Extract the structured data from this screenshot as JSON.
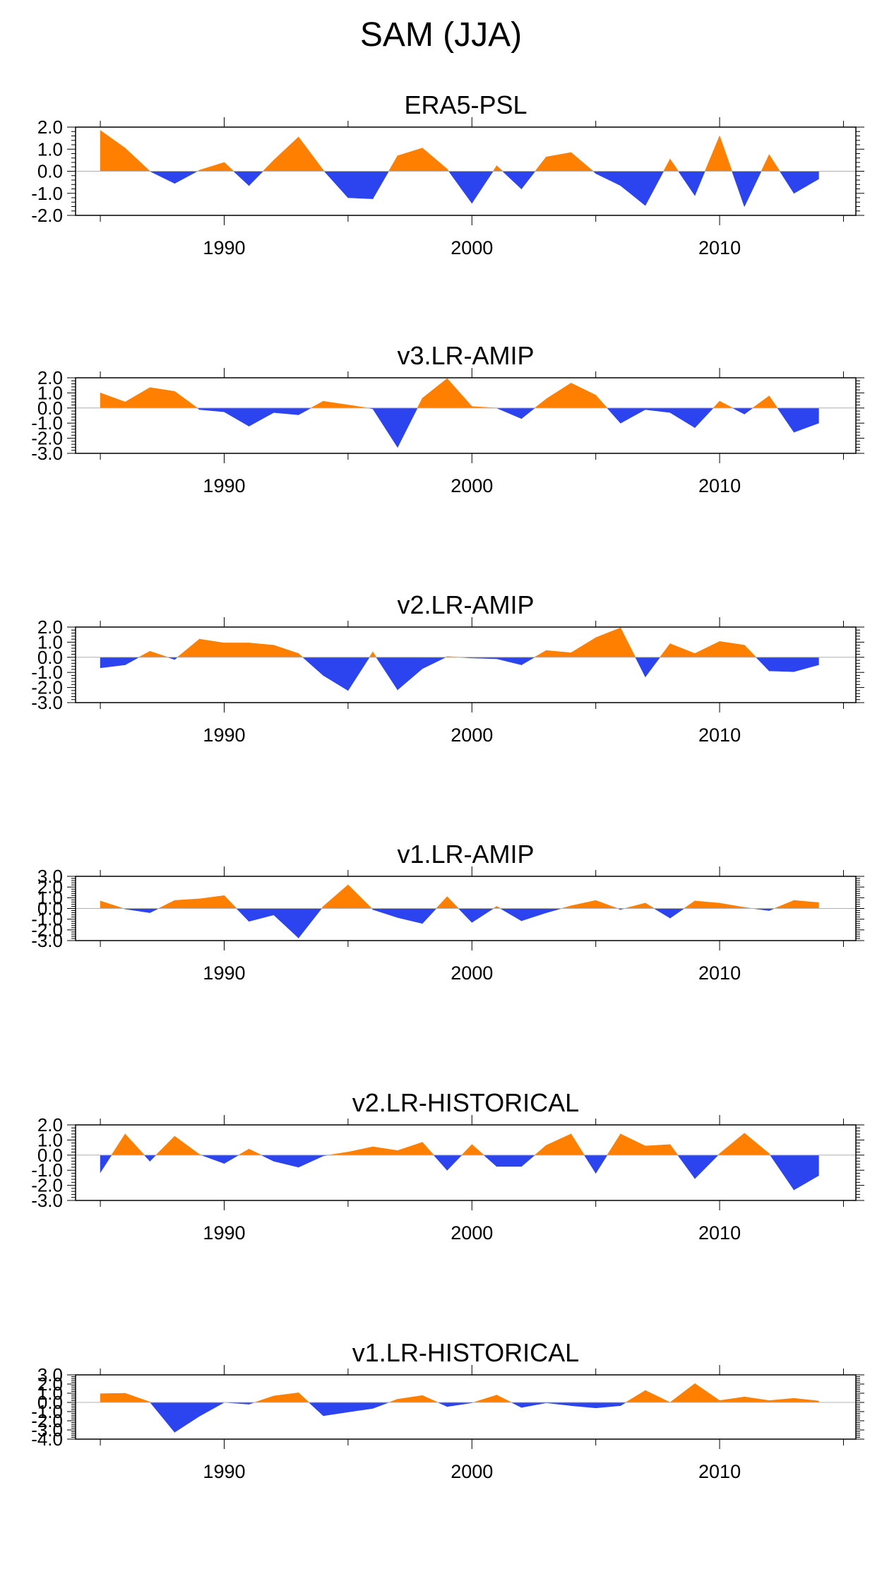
{
  "figure_title": "SAM (JJA)",
  "colors": {
    "positive": "#ff8000",
    "negative": "#2c44f0",
    "axis": "#000000",
    "zero_line": "#b0b0b0"
  },
  "chart_data": [
    {
      "type": "area",
      "title": "ERA5-PSL",
      "x": [
        1985,
        1986,
        1987,
        1988,
        1989,
        1990,
        1991,
        1992,
        1993,
        1994,
        1995,
        1996,
        1997,
        1998,
        1999,
        2000,
        2001,
        2002,
        2003,
        2004,
        2005,
        2006,
        2007,
        2008,
        2009,
        2010,
        2011,
        2012,
        2013,
        2014
      ],
      "values": [
        1.85,
        1.05,
        0.0,
        -0.55,
        0.05,
        0.4,
        -0.65,
        0.5,
        1.55,
        0.05,
        -1.2,
        -1.25,
        0.7,
        1.05,
        0.1,
        -1.45,
        0.25,
        -0.8,
        0.65,
        0.85,
        -0.1,
        -0.65,
        -1.55,
        0.55,
        -1.1,
        1.6,
        -1.6,
        0.75,
        -1.0,
        -0.35
      ],
      "ylim": [
        -2.0,
        2.0
      ],
      "yticks": [
        "2.0",
        "1.0",
        "0.0",
        "-1.0",
        "-2.0"
      ],
      "ytick_values": [
        2,
        1,
        0,
        -1,
        -2
      ],
      "xlim": [
        1984.0,
        2015.5
      ],
      "xticks": [
        "1990",
        "2000",
        "2010"
      ],
      "xtick_values": [
        1990,
        2000,
        2010
      ]
    },
    {
      "type": "area",
      "title": "v3.LR-AMIP",
      "x": [
        1985,
        1986,
        1987,
        1988,
        1989,
        1990,
        1991,
        1992,
        1993,
        1994,
        1995,
        1996,
        1997,
        1998,
        1999,
        2000,
        2001,
        2002,
        2003,
        2004,
        2005,
        2006,
        2007,
        2008,
        2009,
        2010,
        2011,
        2012,
        2013,
        2014
      ],
      "values": [
        1.0,
        0.4,
        1.35,
        1.1,
        -0.1,
        -0.25,
        -1.2,
        -0.3,
        -0.45,
        0.45,
        0.2,
        -0.05,
        -2.6,
        0.65,
        1.95,
        0.1,
        0.0,
        -0.7,
        0.6,
        1.65,
        0.85,
        -1.0,
        -0.1,
        -0.3,
        -1.3,
        0.45,
        -0.4,
        0.8,
        -1.6,
        -1.0
      ],
      "ylim": [
        -3.0,
        2.0
      ],
      "yticks": [
        "2.0",
        "1.0",
        "0.0",
        "-1.0",
        "-2.0",
        "-3.0"
      ],
      "ytick_values": [
        2,
        1,
        0,
        -1,
        -2,
        -3
      ],
      "xlim": [
        1984.0,
        2015.5
      ],
      "xticks": [
        "1990",
        "2000",
        "2010"
      ],
      "xtick_values": [
        1990,
        2000,
        2010
      ]
    },
    {
      "type": "area",
      "title": "v2.LR-AMIP",
      "x": [
        1985,
        1986,
        1987,
        1988,
        1989,
        1990,
        1991,
        1992,
        1993,
        1994,
        1995,
        1996,
        1997,
        1998,
        1999,
        2000,
        2001,
        2002,
        2003,
        2004,
        2005,
        2006,
        2007,
        2008,
        2009,
        2010,
        2011,
        2012,
        2013,
        2014
      ],
      "values": [
        -0.7,
        -0.5,
        0.4,
        -0.15,
        1.2,
        0.95,
        0.95,
        0.8,
        0.25,
        -1.2,
        -2.2,
        0.35,
        -2.15,
        -0.75,
        0.05,
        -0.05,
        -0.1,
        -0.5,
        0.45,
        0.3,
        1.3,
        1.95,
        -1.3,
        0.9,
        0.25,
        1.05,
        0.8,
        -0.9,
        -0.95,
        -0.5
      ],
      "ylim": [
        -3.0,
        2.0
      ],
      "yticks": [
        "2.0",
        "1.0",
        "0.0",
        "-1.0",
        "-2.0",
        "-3.0"
      ],
      "ytick_values": [
        2,
        1,
        0,
        -1,
        -2,
        -3
      ],
      "xlim": [
        1984.0,
        2015.5
      ],
      "xticks": [
        "1990",
        "2000",
        "2010"
      ],
      "xtick_values": [
        1990,
        2000,
        2010
      ]
    },
    {
      "type": "area",
      "title": "v1.LR-AMIP",
      "x": [
        1985,
        1986,
        1987,
        1988,
        1989,
        1990,
        1991,
        1992,
        1993,
        1994,
        1995,
        1996,
        1997,
        1998,
        1999,
        2000,
        2001,
        2002,
        2003,
        2004,
        2005,
        2006,
        2007,
        2008,
        2009,
        2010,
        2011,
        2012,
        2013,
        2014
      ],
      "values": [
        0.7,
        -0.05,
        -0.4,
        0.75,
        0.9,
        1.2,
        -1.2,
        -0.6,
        -2.75,
        0.2,
        2.2,
        -0.1,
        -0.85,
        -1.4,
        1.1,
        -1.3,
        0.2,
        -1.15,
        -0.4,
        0.25,
        0.75,
        -0.1,
        0.5,
        -0.9,
        0.7,
        0.5,
        0.1,
        -0.2,
        0.75,
        0.55
      ],
      "ylim": [
        -3.0,
        3.0
      ],
      "yticks": [
        "3.0",
        "2.0",
        "1.0",
        "0.0",
        "-1.0",
        "-2.0",
        "-3.0"
      ],
      "ytick_values": [
        3,
        2,
        1,
        0,
        -1,
        -2,
        -3
      ],
      "xlim": [
        1984.0,
        2015.5
      ],
      "xticks": [
        "1990",
        "2000",
        "2010"
      ],
      "xtick_values": [
        1990,
        2000,
        2010
      ]
    },
    {
      "type": "area",
      "title": "v2.LR-HISTORICAL",
      "x": [
        1985,
        1986,
        1987,
        1988,
        1989,
        1990,
        1991,
        1992,
        1993,
        1994,
        1995,
        1996,
        1997,
        1998,
        1999,
        2000,
        2001,
        2002,
        2003,
        2004,
        2005,
        2006,
        2007,
        2008,
        2009,
        2010,
        2011,
        2012,
        2013,
        2014
      ],
      "values": [
        -1.15,
        1.4,
        -0.4,
        1.25,
        0.05,
        -0.55,
        0.4,
        -0.4,
        -0.8,
        -0.05,
        0.2,
        0.55,
        0.3,
        0.85,
        -1.0,
        0.7,
        -0.75,
        -0.75,
        0.65,
        1.4,
        -1.2,
        1.4,
        0.6,
        0.7,
        -1.55,
        0.1,
        1.45,
        0.1,
        -2.3,
        -1.35
      ],
      "ylim": [
        -3.0,
        2.0
      ],
      "yticks": [
        "2.0",
        "1.0",
        "0.0",
        "-1.0",
        "-2.0",
        "-3.0"
      ],
      "ytick_values": [
        2,
        1,
        0,
        -1,
        -2,
        -3
      ],
      "xlim": [
        1984.0,
        2015.5
      ],
      "xticks": [
        "1990",
        "2000",
        "2010"
      ],
      "xtick_values": [
        1990,
        2000,
        2010
      ]
    },
    {
      "type": "area",
      "title": "v1.LR-HISTORICAL",
      "x": [
        1985,
        1986,
        1987,
        1988,
        1989,
        1990,
        1991,
        1992,
        1993,
        1994,
        1995,
        1996,
        1997,
        1998,
        1999,
        2000,
        2001,
        2002,
        2003,
        2004,
        2005,
        2006,
        2007,
        2008,
        2009,
        2010,
        2011,
        2012,
        2013,
        2014
      ],
      "values": [
        0.95,
        1.0,
        0.05,
        -3.25,
        -1.5,
        0.0,
        -0.2,
        0.7,
        1.05,
        -1.45,
        -1.05,
        -0.65,
        0.35,
        0.75,
        -0.45,
        -0.05,
        0.8,
        -0.55,
        -0.05,
        -0.35,
        -0.6,
        -0.35,
        1.3,
        0.0,
        2.05,
        0.2,
        0.6,
        0.2,
        0.45,
        0.15
      ],
      "ylim": [
        -4.0,
        3.0
      ],
      "yticks": [
        "3.0",
        "2.0",
        "1.0",
        "0.0",
        "-1.0",
        "-2.0",
        "-3.0",
        "-4.0"
      ],
      "ytick_values": [
        3,
        2,
        1,
        0,
        -1,
        -2,
        -3,
        -4
      ],
      "xlim": [
        1984.0,
        2015.5
      ],
      "xticks": [
        "1990",
        "2000",
        "2010"
      ],
      "xtick_values": [
        1990,
        2000,
        2010
      ]
    }
  ]
}
